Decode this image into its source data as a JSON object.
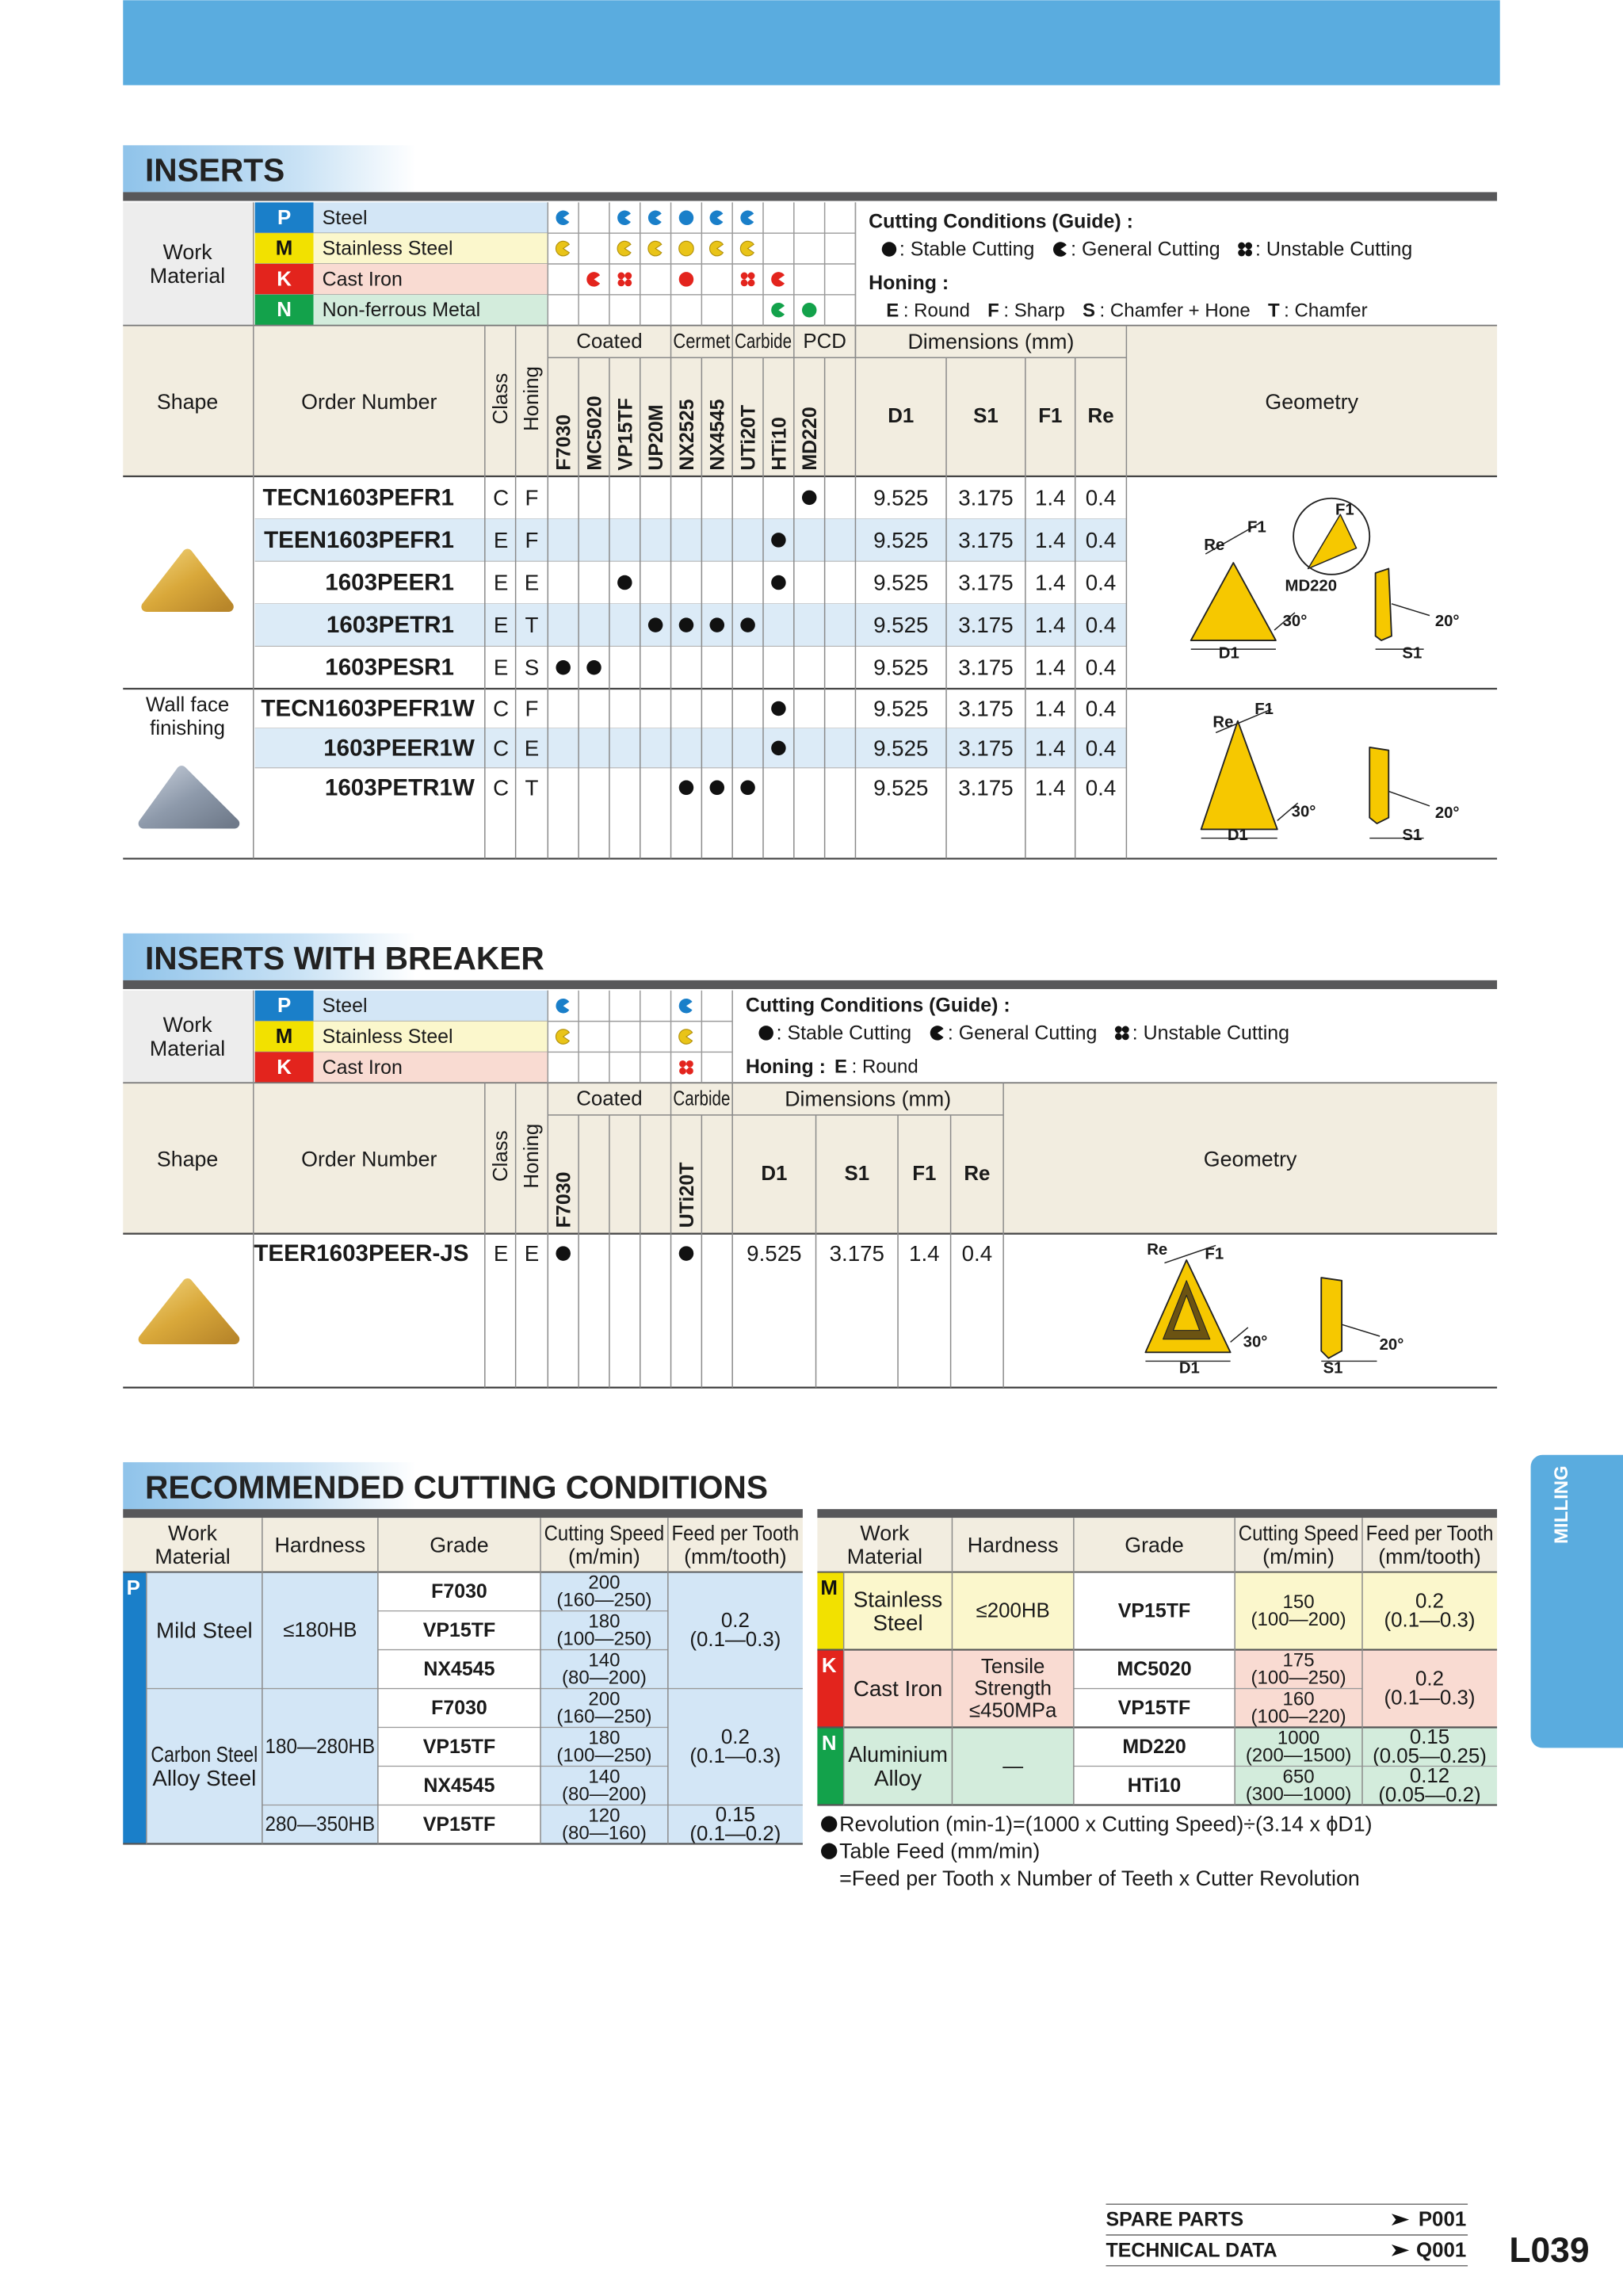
{
  "side_tab": "MILLING",
  "inserts": {
    "title": "INSERTS",
    "work_material": [
      "Work",
      "Material"
    ],
    "materials": [
      {
        "code": "P",
        "name": "Steel",
        "conditions": [
          "general",
          null,
          "general",
          "general",
          "stable",
          "general",
          "general",
          null,
          null,
          null
        ]
      },
      {
        "code": "M",
        "name": "Stainless Steel",
        "conditions": [
          "general",
          null,
          "general",
          "general",
          "stable",
          "general",
          "general",
          null,
          null,
          null
        ]
      },
      {
        "code": "K",
        "name": "Cast Iron",
        "conditions": [
          null,
          "general",
          "unstable",
          null,
          "stable",
          null,
          "unstable",
          "general",
          null,
          null
        ]
      },
      {
        "code": "N",
        "name": "Non-ferrous Metal",
        "conditions": [
          null,
          null,
          null,
          null,
          null,
          null,
          null,
          "general",
          "stable",
          null
        ]
      }
    ],
    "legend": {
      "title": "Cutting Conditions (Guide) :",
      "stable": ": Stable Cutting",
      "general": ": General Cutting",
      "unstable": ": Unstable Cutting",
      "honing_title": "Honing :",
      "honing": [
        {
          "code": "E",
          "name": ": Round"
        },
        {
          "code": "F",
          "name": ": Sharp"
        },
        {
          "code": "S",
          "name": ": Chamfer + Hone"
        },
        {
          "code": "T",
          "name": ": Chamfer"
        }
      ]
    },
    "shape_label": "Shape",
    "order_label": "Order Number",
    "class_label": "Class",
    "honing_label": "Honing",
    "geometry_label": "Geometry",
    "groups": [
      {
        "name": "Coated",
        "grades": [
          "F7030",
          "MC5020",
          "VP15TF",
          "UP20M"
        ]
      },
      {
        "name": "Cermet",
        "grades": [
          "NX2525",
          "NX4545"
        ]
      },
      {
        "name": "Carbide",
        "grades": [
          "UTi20T",
          "HTi10"
        ]
      },
      {
        "name": "PCD",
        "grades": [
          "MD220",
          null
        ]
      }
    ],
    "dimensions": {
      "label": "Dimensions (mm)",
      "columns": [
        "D1",
        "S1",
        "F1",
        "Re"
      ]
    },
    "row_groups": [
      {
        "rows": [
          {
            "order": "TECN1603PEFR1",
            "class": "C",
            "honing": "F",
            "marks": [
              0,
              0,
              0,
              0,
              0,
              0,
              0,
              0,
              1,
              0
            ],
            "dims": [
              9.525,
              3.175,
              1.4,
              0.4
            ]
          },
          {
            "order": "TEEN1603PEFR1",
            "class": "E",
            "honing": "F",
            "marks": [
              0,
              0,
              0,
              0,
              0,
              0,
              0,
              1,
              0,
              0
            ],
            "dims": [
              9.525,
              3.175,
              1.4,
              0.4
            ]
          },
          {
            "order": "1603PEER1",
            "class": "E",
            "honing": "E",
            "marks": [
              0,
              0,
              1,
              0,
              0,
              0,
              0,
              1,
              0,
              0
            ],
            "dims": [
              9.525,
              3.175,
              1.4,
              0.4
            ]
          },
          {
            "order": "1603PETR1",
            "class": "E",
            "honing": "T",
            "marks": [
              0,
              0,
              0,
              1,
              1,
              1,
              1,
              0,
              0,
              0
            ],
            "dims": [
              9.525,
              3.175,
              1.4,
              0.4
            ]
          },
          {
            "order": "1603PESR1",
            "class": "E",
            "honing": "S",
            "marks": [
              1,
              1,
              0,
              0,
              0,
              0,
              0,
              0,
              0,
              0
            ],
            "dims": [
              9.525,
              3.175,
              1.4,
              0.4
            ]
          }
        ],
        "geometry_labels": [
          "Re",
          "F1",
          "F1",
          "MD220",
          "30°",
          "20°",
          "D1",
          "S1"
        ]
      },
      {
        "note": [
          "Wall face",
          "finishing"
        ],
        "rows": [
          {
            "order": "TECN1603PEFR1W",
            "class": "C",
            "honing": "F",
            "marks": [
              0,
              0,
              0,
              0,
              0,
              0,
              0,
              1,
              0,
              0
            ],
            "dims": [
              9.525,
              3.175,
              1.4,
              0.4
            ]
          },
          {
            "order": "1603PEER1W",
            "class": "C",
            "honing": "E",
            "marks": [
              0,
              0,
              0,
              0,
              0,
              0,
              0,
              1,
              0,
              0
            ],
            "dims": [
              9.525,
              3.175,
              1.4,
              0.4
            ]
          },
          {
            "order": "1603PETR1W",
            "class": "C",
            "honing": "T",
            "marks": [
              0,
              0,
              0,
              0,
              1,
              1,
              1,
              0,
              0,
              0
            ],
            "dims": [
              9.525,
              3.175,
              1.4,
              0.4
            ]
          }
        ],
        "geometry_labels": [
          "Re",
          "F1",
          "30°",
          "20°",
          "D1",
          "S1"
        ]
      }
    ]
  },
  "breaker": {
    "title": "INSERTS WITH BREAKER",
    "work_material": [
      "Work",
      "Material"
    ],
    "materials": [
      {
        "code": "P",
        "name": "Steel",
        "conditions": [
          "general",
          null,
          null,
          null,
          "general",
          null
        ]
      },
      {
        "code": "M",
        "name": "Stainless Steel",
        "conditions": [
          "general",
          null,
          null,
          null,
          "general",
          null
        ]
      },
      {
        "code": "K",
        "name": "Cast Iron",
        "conditions": [
          null,
          null,
          null,
          null,
          "unstable",
          null
        ]
      }
    ],
    "legend": {
      "title": "Cutting Conditions (Guide) :",
      "stable": ": Stable Cutting",
      "general": ": General Cutting",
      "unstable": ": Unstable Cutting",
      "honing_title": "Honing :",
      "honing": [
        {
          "code": "E",
          "name": ": Round"
        }
      ]
    },
    "shape_label": "Shape",
    "order_label": "Order Number",
    "class_label": "Class",
    "honing_label": "Honing",
    "geometry_label": "Geometry",
    "groups": [
      {
        "name": "Coated",
        "grades": [
          "F7030",
          null,
          null,
          null
        ]
      },
      {
        "name": "Carbide",
        "grades": [
          "UTi20T",
          null
        ]
      }
    ],
    "dimensions": {
      "label": "Dimensions (mm)",
      "columns": [
        "D1",
        "S1",
        "F1",
        "Re"
      ]
    },
    "row_groups": [
      {
        "rows": [
          {
            "order": "TEER1603PEER-JS",
            "class": "E",
            "honing": "E",
            "marks": [
              1,
              0,
              0,
              0,
              1,
              0
            ],
            "dims": [
              9.525,
              3.175,
              1.4,
              0.4
            ]
          }
        ],
        "geometry_labels": [
          "Re",
          "F1",
          "30°",
          "20°",
          "D1",
          "S1"
        ]
      }
    ]
  },
  "cutting": {
    "title": "RECOMMENDED CUTTING CONDITIONS",
    "left": {
      "headers": [
        [
          "Work",
          "Material"
        ],
        [
          "Hardness"
        ],
        [
          "Grade"
        ],
        [
          "Cutting Speed",
          "(m/min)"
        ],
        [
          "Feed per Tooth",
          "(mm/tooth)"
        ]
      ],
      "materials": [
        {
          "code": "P",
          "hardness_groups": [
            {
              "name": [
                "Mild Steel"
              ],
              "hardness": [
                {
                  "text": [
                    "≤180HB"
                  ],
                  "feeds": [
                    {
                      "text": [
                        "0.2",
                        "(0.1—0.3)"
                      ],
                      "grades": [
                        {
                          "grade": "F7030",
                          "speed": [
                            "200",
                            "(160—250)"
                          ]
                        },
                        {
                          "grade": "VP15TF",
                          "speed": [
                            "180",
                            "(100—250)"
                          ]
                        },
                        {
                          "grade": "NX4545",
                          "speed": [
                            "140",
                            "(80—200)"
                          ]
                        }
                      ]
                    }
                  ]
                }
              ]
            },
            {
              "name": [
                "Carbon Steel",
                "Alloy Steel"
              ],
              "hardness": [
                {
                  "text": [
                    "180—280HB"
                  ],
                  "feeds": [
                    {
                      "text": [
                        "0.2",
                        "(0.1—0.3)"
                      ],
                      "grades": [
                        {
                          "grade": "F7030",
                          "speed": [
                            "200",
                            "(160—250)"
                          ]
                        },
                        {
                          "grade": "VP15TF",
                          "speed": [
                            "180",
                            "(100—250)"
                          ]
                        },
                        {
                          "grade": "NX4545",
                          "speed": [
                            "140",
                            "(80—200)"
                          ]
                        }
                      ]
                    }
                  ]
                },
                {
                  "text": [
                    "280—350HB"
                  ],
                  "feeds": [
                    {
                      "text": [
                        "0.15",
                        "(0.1—0.2)"
                      ],
                      "grades": [
                        {
                          "grade": "VP15TF",
                          "speed": [
                            "120",
                            "(80—160)"
                          ]
                        }
                      ]
                    }
                  ]
                }
              ]
            }
          ]
        }
      ]
    },
    "right": {
      "headers": [
        [
          "Work",
          "Material"
        ],
        [
          "Hardness"
        ],
        [
          "Grade"
        ],
        [
          "Cutting Speed",
          "(m/min)"
        ],
        [
          "Feed per Tooth",
          "(mm/tooth)"
        ]
      ],
      "materials": [
        {
          "code": "M",
          "hardness_groups": [
            {
              "name": [
                "Stainless",
                "Steel"
              ],
              "hardness": [
                {
                  "text": [
                    "≤200HB"
                  ],
                  "feeds": [
                    {
                      "text": [
                        "0.2",
                        "(0.1—0.3)"
                      ],
                      "grades": [
                        {
                          "grade": "VP15TF",
                          "speed": [
                            "150",
                            "(100—200)"
                          ]
                        }
                      ]
                    }
                  ]
                }
              ]
            }
          ]
        },
        {
          "code": "K",
          "hardness_groups": [
            {
              "name": [
                "Cast Iron"
              ],
              "hardness": [
                {
                  "text": [
                    "Tensile",
                    "Strength",
                    "≤450MPa"
                  ],
                  "feeds": [
                    {
                      "text": [
                        "0.2",
                        "(0.1—0.3)"
                      ],
                      "grades": [
                        {
                          "grade": "MC5020",
                          "speed": [
                            "175",
                            "(100—250)"
                          ]
                        },
                        {
                          "grade": "VP15TF",
                          "speed": [
                            "160",
                            "(100—220)"
                          ]
                        }
                      ]
                    }
                  ]
                }
              ]
            }
          ]
        },
        {
          "code": "N",
          "hardness_groups": [
            {
              "name": [
                "Aluminium",
                "Alloy"
              ],
              "hardness": [
                {
                  "text": [
                    "—"
                  ],
                  "feeds": [
                    {
                      "text": [
                        "0.15",
                        "(0.05—0.25)"
                      ],
                      "grades": [
                        {
                          "grade": "MD220",
                          "speed": [
                            "1000",
                            "(200—1500)"
                          ]
                        }
                      ]
                    },
                    {
                      "text": [
                        "0.12",
                        "(0.05—0.2)"
                      ],
                      "grades": [
                        {
                          "grade": "HTi10",
                          "speed": [
                            "650",
                            "(300—1000)"
                          ]
                        }
                      ]
                    }
                  ]
                }
              ]
            }
          ]
        }
      ]
    },
    "notes": [
      {
        "lines": [
          "Revolution (min-1)=(1000 x Cutting Speed)÷(3.14 x ϕD1)"
        ]
      },
      {
        "lines": [
          "Table Feed (mm/min)",
          "=Feed per Tooth x Number of Teeth x Cutter Revolution"
        ]
      }
    ]
  },
  "footer": {
    "links": [
      {
        "name": "SPARE PARTS",
        "ref": "P001"
      },
      {
        "name": "TECHNICAL DATA",
        "ref": "Q001"
      }
    ],
    "page": "L039"
  }
}
